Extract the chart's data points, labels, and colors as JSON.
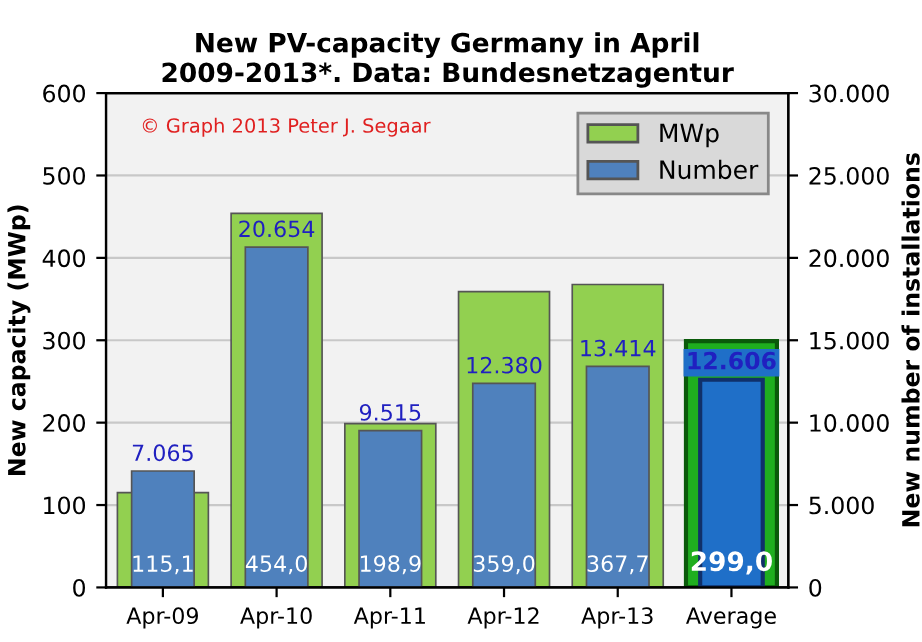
{
  "chart_data": {
    "type": "bar",
    "title": "New PV-capacity Germany in April\n2009-2013*. Data: Bundesnetzagentur",
    "ylabel": "New capacity (MWp)",
    "y2label": "New number of installations",
    "categories": [
      "Apr-09",
      "Apr-10",
      "Apr-11",
      "Apr-12",
      "Apr-13",
      "Average"
    ],
    "series": [
      {
        "name": "MWp",
        "color": "#92d050",
        "colors": [
          "#92d050",
          "#92d050",
          "#92d050",
          "#92d050",
          "#92d050",
          "#1fae1f"
        ],
        "values": [
          115.1,
          454.0,
          198.9,
          359.0,
          367.7,
          299.0
        ],
        "value_labels": [
          "115,1",
          "454,0",
          "198,9",
          "359,0",
          "367,7",
          "299,0"
        ]
      },
      {
        "name": "Number",
        "axis": "y2",
        "color": "#4f81bd",
        "colors": [
          "#4f81bd",
          "#4f81bd",
          "#4f81bd",
          "#4f81bd",
          "#4f81bd",
          "#1f6fc8"
        ],
        "values": [
          7065,
          20654,
          9515,
          12380,
          13414,
          12606
        ],
        "value_labels": [
          "7.065",
          "20.654",
          "9.515",
          "12.380",
          "13.414",
          "12.606"
        ]
      }
    ],
    "ylim": [
      0,
      600
    ],
    "yticks": [
      0,
      100,
      200,
      300,
      400,
      500,
      600
    ],
    "y2lim": [
      0,
      30000
    ],
    "y2ticks": [
      0,
      {
        "value": 5000,
        "label": "5.000"
      },
      {
        "value": 10000,
        "label": "10.000"
      },
      {
        "value": 15000,
        "label": "15.000"
      },
      {
        "value": 20000,
        "label": "20.000"
      },
      {
        "value": 25000,
        "label": "25.000"
      },
      {
        "value": 30000,
        "label": "30.000"
      }
    ],
    "grid": "y",
    "legend": "top right",
    "annotations": [
      "© Graph 2013 Peter J. Segaar"
    ]
  }
}
